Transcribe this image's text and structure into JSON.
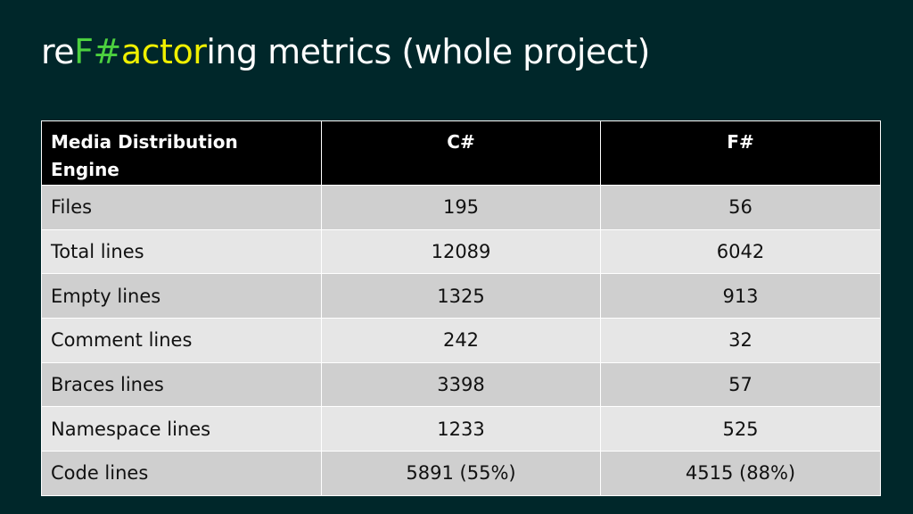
{
  "slide": {
    "title_parts": [
      "re",
      "F#",
      "actor",
      "ing metrics (whole project)"
    ],
    "accent_colors": {
      "green": "#4cd13f",
      "yellow": "#f0f000",
      "background": "#00272a"
    }
  },
  "table": {
    "headers": [
      "Media Distribution Engine",
      "C#",
      "F#"
    ],
    "rows": [
      {
        "metric": "Files",
        "csharp": "195",
        "fsharp": "56"
      },
      {
        "metric": "Total lines",
        "csharp": "12089",
        "fsharp": "6042"
      },
      {
        "metric": "Empty lines",
        "csharp": "1325",
        "fsharp": "913"
      },
      {
        "metric": "Comment lines",
        "csharp": "242",
        "fsharp": "32"
      },
      {
        "metric": "Braces lines",
        "csharp": "3398",
        "fsharp": "57"
      },
      {
        "metric": "Namespace lines",
        "csharp": "1233",
        "fsharp": "525"
      },
      {
        "metric": "Code lines",
        "csharp": "5891 (55%)",
        "fsharp": "4515 (88%)"
      }
    ]
  }
}
